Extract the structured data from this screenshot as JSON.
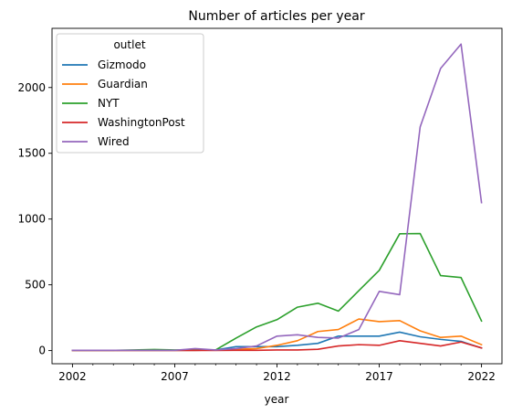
{
  "chart_data": {
    "type": "line",
    "title": "Number of articles per year",
    "xlabel": "year",
    "ylabel": "",
    "xlim": [
      2001,
      2023
    ],
    "ylim": [
      -100,
      2450
    ],
    "xticks_major": [
      2002,
      2007,
      2012,
      2017,
      2022
    ],
    "yticks": [
      0,
      500,
      1000,
      1500,
      2000
    ],
    "grid": false,
    "legend": {
      "title": "outlet",
      "position": "top-left"
    },
    "x": [
      2002,
      2003,
      2004,
      2005,
      2006,
      2007,
      2008,
      2009,
      2010,
      2011,
      2012,
      2013,
      2014,
      2015,
      2016,
      2017,
      2018,
      2019,
      2020,
      2021,
      2022
    ],
    "series": [
      {
        "name": "Gizmodo",
        "color": "#1f77b4",
        "values": [
          2,
          2,
          2,
          2,
          2,
          2,
          2,
          5,
          30,
          30,
          30,
          40,
          55,
          110,
          110,
          110,
          140,
          105,
          85,
          70,
          20
        ]
      },
      {
        "name": "Guardian",
        "color": "#ff7f0e",
        "values": [
          2,
          2,
          2,
          2,
          2,
          2,
          2,
          5,
          10,
          15,
          40,
          75,
          145,
          160,
          240,
          220,
          228,
          150,
          100,
          110,
          45
        ]
      },
      {
        "name": "NYT",
        "color": "#2ca02c",
        "values": [
          2,
          2,
          2,
          5,
          8,
          5,
          5,
          5,
          95,
          180,
          235,
          330,
          360,
          300,
          455,
          610,
          888,
          890,
          570,
          555,
          225
        ]
      },
      {
        "name": "WashingtonPost",
        "color": "#d62728",
        "values": [
          1,
          1,
          1,
          1,
          1,
          1,
          1,
          1,
          2,
          2,
          5,
          5,
          10,
          35,
          45,
          40,
          75,
          55,
          35,
          65,
          20
        ]
      },
      {
        "name": "Wired",
        "color": "#9467bd",
        "values": [
          2,
          2,
          2,
          2,
          2,
          2,
          15,
          5,
          15,
          35,
          110,
          120,
          100,
          95,
          160,
          450,
          425,
          1700,
          2145,
          2330,
          1125
        ]
      }
    ]
  }
}
